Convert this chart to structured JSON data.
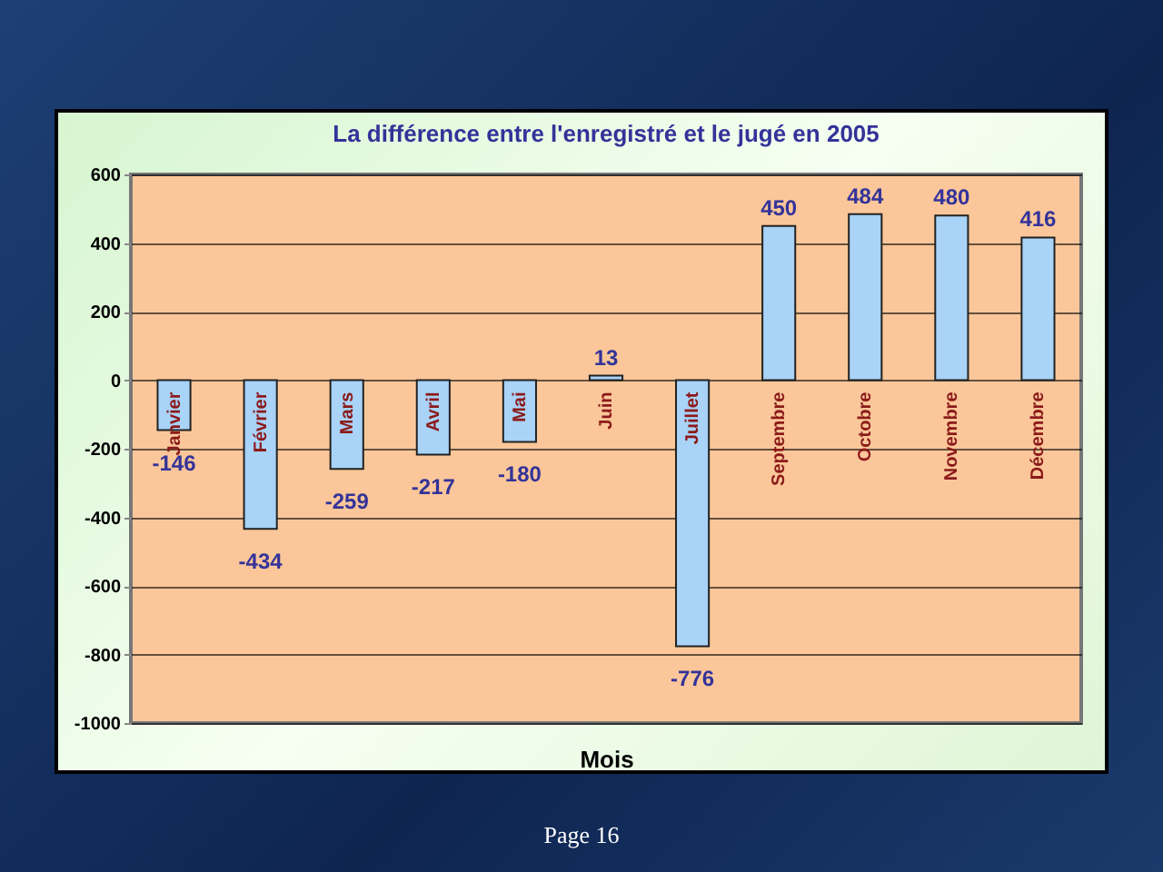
{
  "chart_data": {
    "type": "bar",
    "title": "La différence entre l'enregistré et le jugé en 2005",
    "xlabel": "Mois",
    "categories": [
      "Janvier",
      "Février",
      "Mars",
      "Avril",
      "Mai",
      "Juin",
      "Juillet",
      "Septembre",
      "Octobre",
      "Novembre",
      "Décembre"
    ],
    "values": [
      -146,
      -434,
      -259,
      -217,
      -180,
      13,
      -776,
      450,
      484,
      480,
      416
    ],
    "color": "#a9d3f7",
    "ylim": [
      -1000,
      600
    ],
    "yticks": [
      -1000,
      -800,
      -600,
      -400,
      -200,
      0,
      200,
      400,
      600
    ],
    "grid": "y",
    "data_labels": true,
    "annotations": [
      "Page 16"
    ]
  }
}
